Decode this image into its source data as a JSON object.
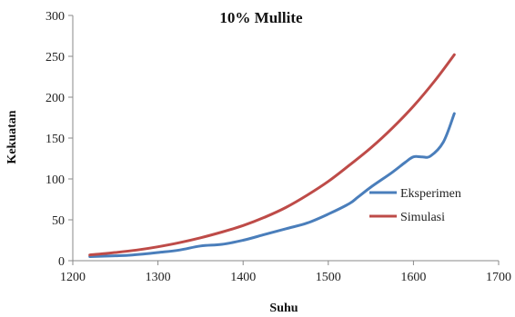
{
  "chart_data": {
    "type": "line",
    "title": "10% Mullite",
    "xlabel": "Suhu",
    "ylabel": "Kekuatan",
    "xlim": [
      1200,
      1700
    ],
    "ylim": [
      0,
      300
    ],
    "x_ticks": [
      "1200",
      "1300",
      "1400",
      "1500",
      "1600",
      "1700"
    ],
    "y_ticks": [
      "0",
      "50",
      "100",
      "150",
      "200",
      "250",
      "300"
    ],
    "grid": false,
    "legend_position": "right",
    "series": [
      {
        "name": "Eksperimen",
        "color": "#4a7ebb",
        "x": [
          1220,
          1250,
          1270,
          1300,
          1325,
          1350,
          1375,
          1400,
          1425,
          1450,
          1475,
          1500,
          1525,
          1535,
          1550,
          1575,
          1590,
          1600,
          1610,
          1620,
          1635,
          1648
        ],
        "y": [
          5,
          6,
          7,
          10,
          13,
          18,
          20,
          25,
          32,
          39,
          46,
          57,
          70,
          78,
          90,
          108,
          120,
          127,
          127,
          128,
          145,
          180
        ]
      },
      {
        "name": "Simulasi",
        "color": "#be4b48",
        "x": [
          1220,
          1250,
          1275,
          1300,
          1325,
          1350,
          1375,
          1400,
          1425,
          1450,
          1475,
          1500,
          1525,
          1550,
          1575,
          1600,
          1625,
          1648
        ],
        "y": [
          7,
          10,
          13,
          17,
          22,
          28,
          35,
          43,
          53,
          65,
          80,
          97,
          117,
          138,
          162,
          189,
          220,
          252
        ]
      }
    ]
  }
}
